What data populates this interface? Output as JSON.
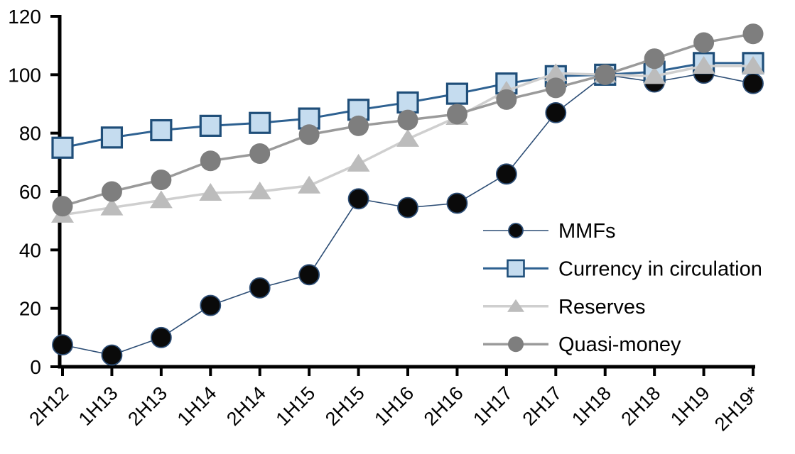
{
  "chart_data": {
    "type": "line",
    "title": "",
    "categories": [
      "2H12",
      "1H13",
      "2H13",
      "1H14",
      "2H14",
      "1H15",
      "2H15",
      "1H16",
      "2H16",
      "1H17",
      "2H17",
      "1H18",
      "2H18",
      "1H19",
      "2H19*"
    ],
    "series": [
      {
        "name": "MMFs",
        "marker": "circle",
        "marker_fill": "#0a0a0a",
        "marker_stroke": "#2c4d75",
        "line_color": "#2c4d75",
        "values": [
          7.5,
          4,
          10,
          21,
          27,
          31.5,
          57.5,
          54.5,
          56,
          66,
          87,
          100,
          97.5,
          100.5,
          97
        ]
      },
      {
        "name": "Currency in circulation",
        "marker": "square",
        "marker_fill": "#c5dcef",
        "marker_stroke": "#1f4e79",
        "line_color": "#2e6191",
        "values": [
          75,
          78.5,
          81,
          82.5,
          83.5,
          85,
          88,
          90.5,
          93.5,
          97,
          99.5,
          100,
          101,
          104,
          104
        ]
      },
      {
        "name": "Reserves",
        "marker": "triangle",
        "marker_fill": "#bcbcbc",
        "marker_stroke": "#d0d0d0",
        "line_color": "#cfcfcf",
        "values": [
          52,
          54.5,
          57,
          59.5,
          60,
          62,
          69.5,
          78,
          85.5,
          94.5,
          100.5,
          100,
          99.5,
          103,
          103
        ]
      },
      {
        "name": "Quasi-money",
        "marker": "circle",
        "marker_fill": "#7e7e7e",
        "marker_stroke": "#9a9a9a",
        "line_color": "#9a9a9a",
        "values": [
          55,
          60,
          64,
          70.5,
          73,
          79.5,
          82.5,
          84.5,
          86.5,
          91.5,
          95.5,
          100,
          105.5,
          111,
          114
        ]
      }
    ],
    "y_axis": {
      "min": 0,
      "max": 120,
      "step": 20,
      "tick_labels": [
        "0",
        "20",
        "40",
        "60",
        "80",
        "100",
        "120"
      ]
    },
    "x_axis": {
      "tick_labels": [
        "2H12",
        "1H13",
        "2H13",
        "1H14",
        "2H14",
        "1H15",
        "2H15",
        "1H16",
        "2H16",
        "1H17",
        "2H17",
        "1H18",
        "2H18",
        "1H19",
        "2H19*"
      ]
    },
    "legend": {
      "position": "inside-right",
      "entries": [
        "MMFs",
        "Currency in circulation",
        "Reserves",
        "Quasi-money"
      ]
    },
    "grid": "off",
    "axis_color": "#000000"
  }
}
